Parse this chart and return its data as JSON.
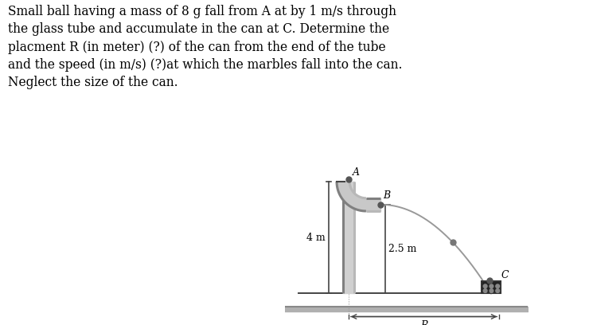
{
  "title_text": "Small ball having a mass of 8 g fall from A at by 1 m/s through\nthe glass tube and accumulate in the can at C. Determine the\nplacment R (in meter) (?) of the can from the end of the tube\nand the speed (in m/s) (?)at which the marbles fall into the can.\nNeglect the size of the can.",
  "title_fontsize": 11.2,
  "bg_color": "#ffffff",
  "label_4m": "4 m",
  "label_25m": "2.5 m",
  "label_R": "R",
  "label_A": "A",
  "label_B": "B",
  "label_C": "C",
  "tube_dark": "#808080",
  "tube_light": "#b8b8b8",
  "line_color": "#444444",
  "ball_color": "#555555",
  "traj_color": "#999999",
  "floor_color": "#aaaaaa"
}
